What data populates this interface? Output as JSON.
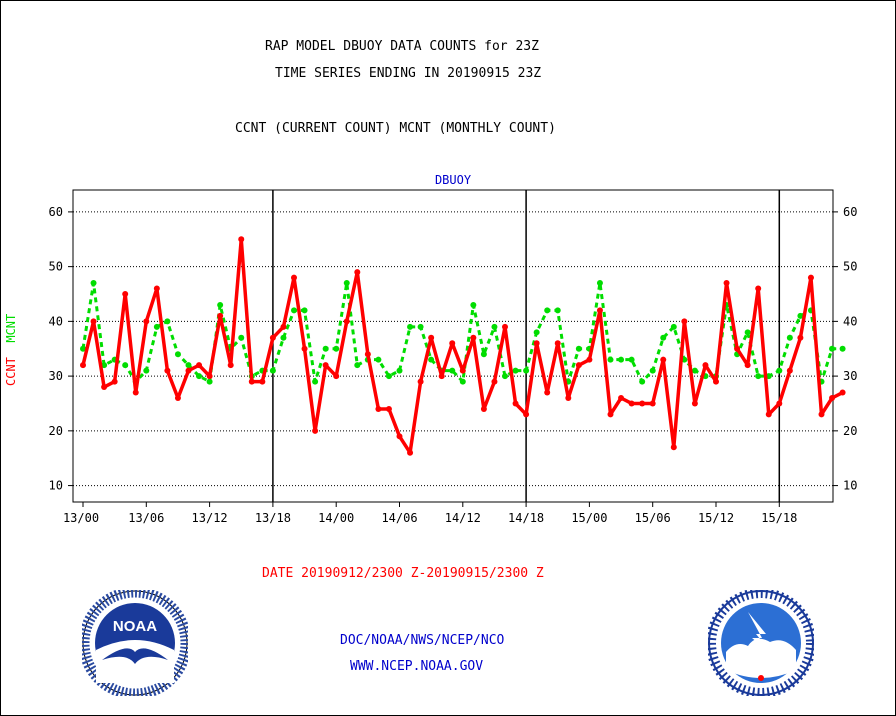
{
  "header": {
    "line1": "RAP MODEL DBUOY DATA COUNTS for 23Z",
    "line2": "TIME SERIES ENDING IN 20190915 23Z",
    "line3": "CCNT (CURRENT COUNT) MCNT (MONTHLY COUNT)"
  },
  "footer": {
    "date_range": "DATE 20190912/2300 Z-20190915/2300 Z",
    "org": "DOC/NOAA/NWS/NCEP/NCO",
    "site": "WWW.NCEP.NOAA.GOV"
  },
  "logos": {
    "noaa_text": "NOAA"
  },
  "colors": {
    "ccnt": "#ff0000",
    "mcnt": "#00dd00",
    "title": "#0000cc"
  },
  "chart_data": {
    "type": "line",
    "title": "DBUOY",
    "ylabel_ccnt": "CCNT",
    "ylabel_mcnt": "MCNT",
    "ylim": [
      7,
      64
    ],
    "yticks": [
      10,
      20,
      30,
      40,
      50,
      60
    ],
    "xticks": [
      "13/00",
      "13/06",
      "13/12",
      "13/18",
      "14/00",
      "14/06",
      "14/12",
      "14/18",
      "15/00",
      "15/06",
      "15/12",
      "15/18"
    ],
    "grid": true,
    "series": [
      {
        "name": "CCNT",
        "color": "#ff0000",
        "values": [
          32,
          40,
          28,
          29,
          45,
          27,
          40,
          46,
          31,
          26,
          31,
          32,
          30,
          41,
          32,
          55,
          29,
          29,
          37,
          39,
          48,
          35,
          20,
          32,
          30,
          40,
          49,
          34,
          24,
          24,
          19,
          16,
          29,
          37,
          30,
          36,
          31,
          37,
          24,
          29,
          39,
          25,
          23,
          36,
          27,
          36,
          26,
          32,
          33,
          42,
          23,
          26,
          25,
          25,
          25,
          33,
          17,
          40,
          25,
          32,
          29,
          47,
          35,
          32,
          46,
          23,
          25,
          31,
          37,
          48,
          23,
          26,
          27
        ]
      },
      {
        "name": "MCNT",
        "color": "#00dd00",
        "values": [
          35,
          47,
          32,
          33,
          32,
          29,
          31,
          39,
          40,
          34,
          32,
          30,
          29,
          43,
          35,
          37,
          30,
          31,
          31,
          37,
          42,
          42,
          29,
          35,
          35,
          47,
          32,
          33,
          33,
          30,
          31,
          39,
          39,
          33,
          31,
          31,
          29,
          43,
          34,
          39,
          30,
          31,
          31,
          38,
          42,
          42,
          29,
          35,
          35,
          47,
          33,
          33,
          33,
          29,
          31,
          37,
          39,
          33,
          31,
          30,
          30,
          43,
          34,
          38,
          30,
          30,
          31,
          37,
          41,
          42,
          29,
          35,
          35
        ]
      }
    ]
  }
}
